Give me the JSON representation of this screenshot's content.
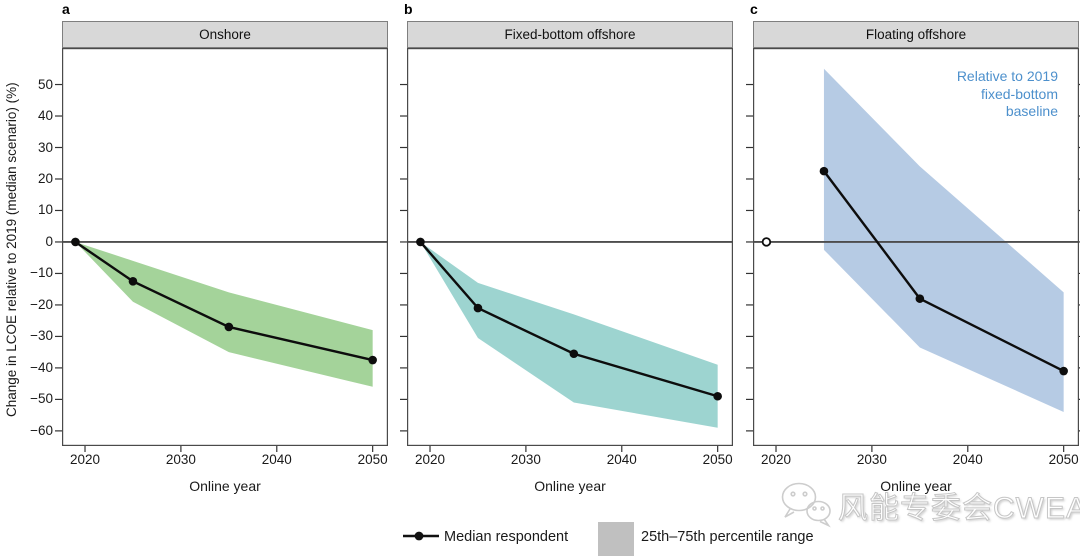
{
  "figure": {
    "y_axis_label": "Change in LCOE relative to 2019 (median scenario) (%)",
    "x_axis_label": "Online year",
    "y_tick_values": [
      50,
      40,
      30,
      20,
      10,
      0,
      -10,
      -20,
      -30,
      -40,
      -50,
      -60
    ],
    "y_tick_labels": [
      "50",
      "40",
      "30",
      "20",
      "10",
      "0",
      "−10",
      "−20",
      "−30",
      "−40",
      "−50",
      "−60"
    ],
    "x_tick_values": [
      2020,
      2030,
      2040,
      2050
    ],
    "x_tick_labels": [
      "2020",
      "2030",
      "2040",
      "2050"
    ]
  },
  "panels": [
    {
      "letter": "a",
      "title": "Onshore"
    },
    {
      "letter": "b",
      "title": "Fixed-bottom offshore"
    },
    {
      "letter": "c",
      "title": "Floating offshore",
      "annotation": [
        "Relative to 2019",
        "fixed-bottom",
        "baseline"
      ],
      "annotation_color": "#4d90cc"
    }
  ],
  "chart_data": [
    {
      "type": "line",
      "panel": "a",
      "title": "Onshore",
      "xlabel": "Online year",
      "ylabel": "Change in LCOE relative to 2019 (median scenario) (%)",
      "x": [
        2019,
        2025,
        2035,
        2050
      ],
      "series": [
        {
          "name": "Median respondent",
          "values": [
            0,
            -12.5,
            -27,
            -37.5
          ]
        },
        {
          "name": "25th percentile (band upper edge)",
          "values": [
            0,
            -6,
            -16,
            -28
          ]
        },
        {
          "name": "75th percentile (band lower edge)",
          "values": [
            0,
            -19,
            -35,
            -46
          ]
        }
      ],
      "band_color": "#a4d39a",
      "xlim": [
        2017.6,
        2051.6
      ],
      "ylim": [
        -64.8,
        61.6
      ],
      "zero_line": true,
      "grid": false
    },
    {
      "type": "line",
      "panel": "b",
      "title": "Fixed-bottom offshore",
      "xlabel": "Online year",
      "ylabel": "Change in LCOE relative to 2019 (median scenario) (%)",
      "x": [
        2019,
        2025,
        2035,
        2050
      ],
      "series": [
        {
          "name": "Median respondent",
          "values": [
            0,
            -21,
            -35.5,
            -49
          ]
        },
        {
          "name": "25th percentile (band upper edge)",
          "values": [
            0,
            -13,
            -23,
            -39
          ]
        },
        {
          "name": "75th percentile (band lower edge)",
          "values": [
            0,
            -30.5,
            -51,
            -59
          ]
        }
      ],
      "band_color": "#9dd4d0",
      "xlim": [
        2017.6,
        2051.6
      ],
      "ylim": [
        -64.8,
        61.6
      ],
      "zero_line": true,
      "grid": false
    },
    {
      "type": "line",
      "panel": "c",
      "title": "Floating offshore",
      "xlabel": "Online year",
      "ylabel": "Change in LCOE relative to 2019 (median scenario) (%)",
      "x": [
        2025,
        2035,
        2050
      ],
      "series": [
        {
          "name": "Median respondent",
          "values": [
            22.5,
            -18,
            -41
          ]
        },
        {
          "name": "25th percentile (band upper edge)",
          "values": [
            55,
            24,
            -16
          ]
        },
        {
          "name": "75th percentile (band lower edge)",
          "values": [
            -2.5,
            -33.5,
            -54
          ]
        }
      ],
      "baseline_point": {
        "x": 2019,
        "y": 0,
        "marker": "open-circle"
      },
      "band_color": "#b6cbe4",
      "xlim": [
        2017.6,
        2051.6
      ],
      "ylim": [
        -64.8,
        61.6
      ],
      "zero_line": true,
      "grid": false,
      "annotation": "Relative to 2019 fixed-bottom baseline"
    }
  ],
  "legend": {
    "median_label": "Median respondent",
    "band_label": "25th–75th percentile range",
    "band_swatch_color": "#c0c0c0"
  },
  "watermark": {
    "text": "风能专委会CWEA",
    "icon": "wechat-icon"
  }
}
